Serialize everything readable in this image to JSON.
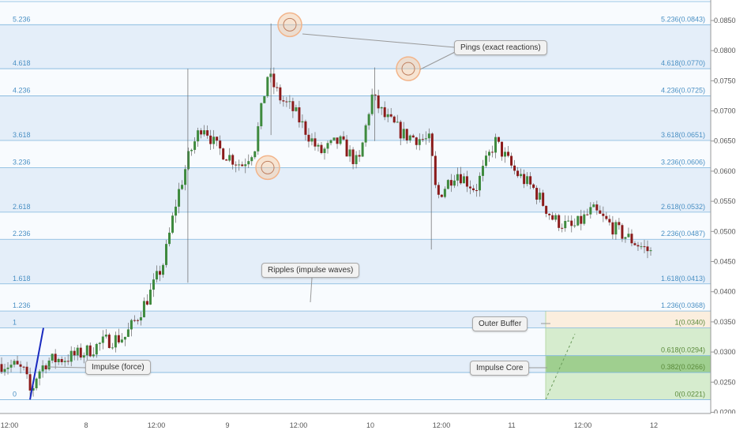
{
  "chart_data": {
    "type": "candlestick",
    "price_axis": {
      "range": [
        0.0198,
        0.0884
      ],
      "ticks": [
        "0.0850",
        "0.0800",
        "0.0750",
        "0.0700",
        "0.0650",
        "0.0600",
        "0.0550",
        "0.0500",
        "0.0450",
        "0.0400",
        "0.0350",
        "0.0300",
        "0.0250",
        "0.0200"
      ]
    },
    "time_axis": {
      "ticks": [
        "12:00",
        "8",
        "12:00",
        "9",
        "12:00",
        "10",
        "12:00",
        "11",
        "12:00",
        "12"
      ]
    },
    "fib_levels": [
      {
        "ratio": "5.236",
        "label": "5.236(0.0843)",
        "value": 0.0843
      },
      {
        "ratio": "4.618",
        "label": "4.618(0.0770)",
        "value": 0.077
      },
      {
        "ratio": "4.236",
        "label": "4.236(0.0725)",
        "value": 0.0725
      },
      {
        "ratio": "3.618",
        "label": "3.618(0.0651)",
        "value": 0.0651
      },
      {
        "ratio": "3.236",
        "label": "3.236(0.0606)",
        "value": 0.0606
      },
      {
        "ratio": "2.618",
        "label": "2.618(0.0532)",
        "value": 0.0532
      },
      {
        "ratio": "2.236",
        "label": "2.236(0.0487)",
        "value": 0.0487
      },
      {
        "ratio": "1.618",
        "label": "1.618(0.0413)",
        "value": 0.0413
      },
      {
        "ratio": "1.236",
        "label": "1.236(0.0368)",
        "value": 0.0368
      },
      {
        "ratio": "1",
        "label": "1(0.0340)",
        "value": 0.034
      },
      {
        "ratio": "",
        "label": "0.618(0.0294)",
        "value": 0.0294
      },
      {
        "ratio": "",
        "label": "0.382(0.0266)",
        "value": 0.0266
      },
      {
        "ratio": "0",
        "label": "0(0.0221)",
        "value": 0.0221
      }
    ],
    "close_path": [
      [
        0.0,
        0.028
      ],
      [
        0.02,
        0.0277
      ],
      [
        0.035,
        0.0267
      ],
      [
        0.045,
        0.023
      ],
      [
        0.055,
        0.0265
      ],
      [
        0.07,
        0.0285
      ],
      [
        0.1,
        0.029
      ],
      [
        0.13,
        0.03
      ],
      [
        0.16,
        0.0318
      ],
      [
        0.19,
        0.0325
      ],
      [
        0.21,
        0.036
      ],
      [
        0.23,
        0.04
      ],
      [
        0.25,
        0.045
      ],
      [
        0.27,
        0.0555
      ],
      [
        0.29,
        0.063
      ],
      [
        0.31,
        0.068
      ],
      [
        0.33,
        0.064
      ],
      [
        0.35,
        0.0625
      ],
      [
        0.37,
        0.061
      ],
      [
        0.39,
        0.064
      ],
      [
        0.41,
        0.076
      ],
      [
        0.43,
        0.072
      ],
      [
        0.45,
        0.07
      ],
      [
        0.49,
        0.063
      ],
      [
        0.52,
        0.065
      ],
      [
        0.55,
        0.061
      ],
      [
        0.57,
        0.0725
      ],
      [
        0.59,
        0.069
      ],
      [
        0.62,
        0.066
      ],
      [
        0.66,
        0.065
      ],
      [
        0.67,
        0.0555
      ],
      [
        0.7,
        0.06
      ],
      [
        0.73,
        0.057
      ],
      [
        0.76,
        0.065
      ],
      [
        0.79,
        0.06
      ],
      [
        0.82,
        0.057
      ],
      [
        0.85,
        0.052
      ],
      [
        0.88,
        0.0505
      ],
      [
        0.91,
        0.0535
      ],
      [
        0.95,
        0.05
      ],
      [
        1.0,
        0.0465
      ]
    ],
    "spikes": [
      {
        "t": 0.287,
        "high": 0.077,
        "low": 0.0415
      },
      {
        "t": 0.415,
        "high": 0.0845,
        "low": 0.066
      },
      {
        "t": 0.575,
        "high": 0.0772,
        "low": 0.065
      },
      {
        "t": 0.662,
        "high": 0.064,
        "low": 0.047
      }
    ],
    "annotations": [
      "Pings (exact reactions)",
      "Ripples (impulse waves)",
      "Impulse (force)",
      "Outer Buffer",
      "Impulse Core"
    ]
  },
  "colors": {
    "bull": "#3e8a3e",
    "bear": "#8b1a1a",
    "level": "#7fb6dd",
    "band": "#e4eef9",
    "zone": "#d6ecce",
    "zone_core": "#9fcf8f",
    "buffer": "#fbeede",
    "highlight": "#f2b48a"
  },
  "callouts": {
    "pings": "Pings (exact reactions)",
    "ripples": "Ripples (impulse waves)",
    "impulse": "Impulse (force)",
    "outer_buffer": "Outer Buffer",
    "impulse_core": "Impulse Core"
  }
}
